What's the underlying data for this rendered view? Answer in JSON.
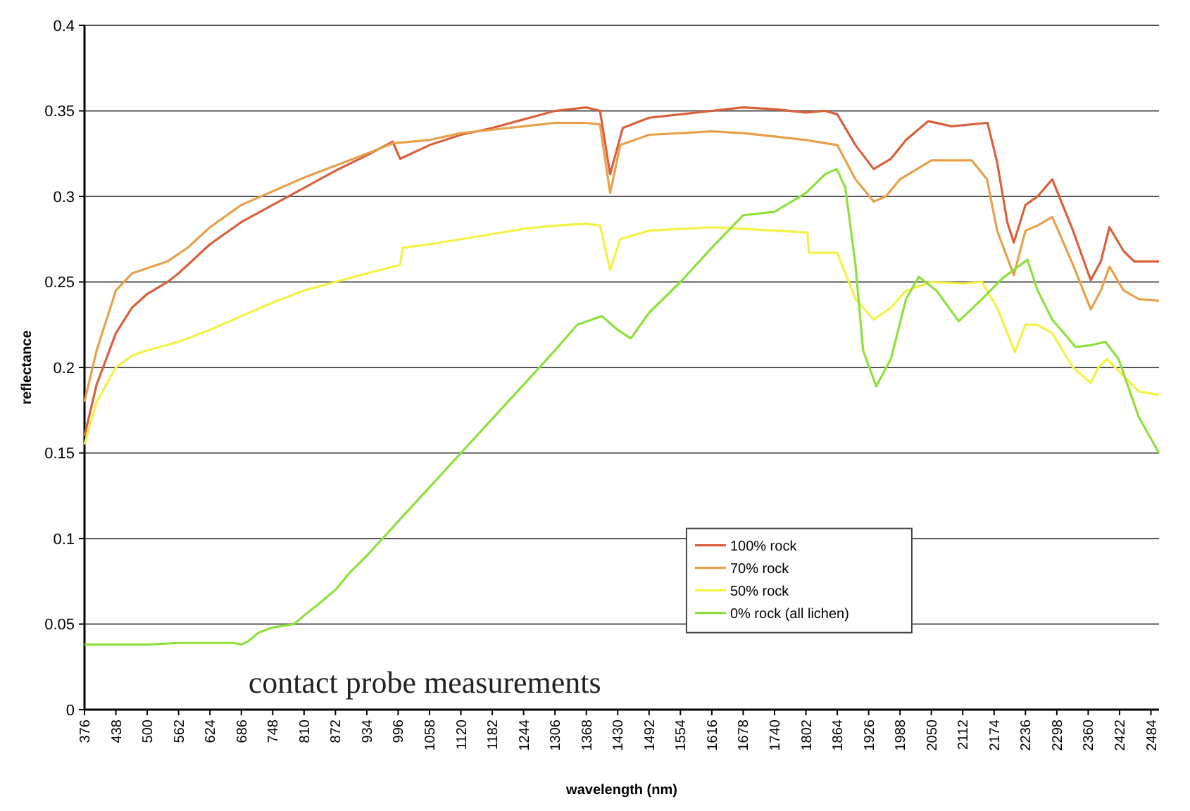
{
  "chart_data": {
    "type": "line",
    "xlabel": "wavelength (nm)",
    "ylabel": "reflectance",
    "annotations": [
      "contact probe measurements"
    ],
    "xlim": [
      376,
      2500
    ],
    "xticks": [
      376,
      438,
      500,
      562,
      624,
      686,
      748,
      810,
      872,
      934,
      996,
      1058,
      1120,
      1182,
      1244,
      1306,
      1368,
      1430,
      1492,
      1554,
      1616,
      1678,
      1740,
      1802,
      1864,
      1926,
      1988,
      2050,
      2112,
      2174,
      2236,
      2298,
      2360,
      2422,
      2484
    ],
    "ylim": [
      0,
      0.4
    ],
    "yticks": [
      0,
      0.05,
      0.1,
      0.15,
      0.2,
      0.25,
      0.3,
      0.35,
      0.4
    ],
    "grid": "y",
    "legend": "bottom right",
    "line_style": "solid",
    "series": [
      {
        "name": "100% rock",
        "color": "#d9603b",
        "x": [
          376,
          400,
          438,
          470,
          500,
          540,
          562,
          624,
          686,
          748,
          810,
          872,
          934,
          985,
          1000,
          1058,
          1120,
          1182,
          1244,
          1306,
          1368,
          1395,
          1415,
          1440,
          1492,
          1554,
          1616,
          1678,
          1740,
          1802,
          1840,
          1864,
          1900,
          1936,
          1970,
          2000,
          2044,
          2090,
          2161,
          2180,
          2200,
          2213,
          2236,
          2260,
          2289,
          2330,
          2365,
          2385,
          2402,
          2430,
          2451,
          2500
        ],
        "values": [
          0.16,
          0.19,
          0.22,
          0.235,
          0.243,
          0.25,
          0.255,
          0.272,
          0.285,
          0.295,
          0.305,
          0.315,
          0.324,
          0.332,
          0.322,
          0.33,
          0.336,
          0.34,
          0.345,
          0.35,
          0.352,
          0.35,
          0.313,
          0.34,
          0.346,
          0.348,
          0.35,
          0.352,
          0.351,
          0.349,
          0.35,
          0.348,
          0.33,
          0.316,
          0.322,
          0.333,
          0.344,
          0.341,
          0.343,
          0.32,
          0.285,
          0.273,
          0.295,
          0.3,
          0.31,
          0.28,
          0.251,
          0.262,
          0.282,
          0.268,
          0.262,
          0.262
        ]
      },
      {
        "name": "70% rock",
        "color": "#e8a04a",
        "x": [
          376,
          400,
          438,
          470,
          500,
          540,
          580,
          624,
          686,
          748,
          810,
          872,
          934,
          985,
          1058,
          1120,
          1182,
          1244,
          1306,
          1368,
          1395,
          1415,
          1435,
          1492,
          1554,
          1616,
          1678,
          1740,
          1802,
          1864,
          1900,
          1936,
          1960,
          1988,
          2050,
          2130,
          2160,
          2180,
          2213,
          2236,
          2260,
          2289,
          2330,
          2365,
          2385,
          2402,
          2430,
          2460,
          2500
        ],
        "values": [
          0.18,
          0.21,
          0.245,
          0.255,
          0.258,
          0.262,
          0.27,
          0.282,
          0.295,
          0.303,
          0.311,
          0.318,
          0.325,
          0.331,
          0.333,
          0.337,
          0.339,
          0.341,
          0.343,
          0.343,
          0.342,
          0.302,
          0.33,
          0.336,
          0.337,
          0.338,
          0.337,
          0.335,
          0.333,
          0.33,
          0.31,
          0.297,
          0.3,
          0.31,
          0.321,
          0.321,
          0.31,
          0.28,
          0.254,
          0.28,
          0.283,
          0.288,
          0.26,
          0.234,
          0.245,
          0.259,
          0.245,
          0.24,
          0.239
        ]
      },
      {
        "name": "50% rock",
        "color": "#f2f244",
        "x": [
          376,
          400,
          438,
          470,
          500,
          562,
          624,
          686,
          748,
          810,
          872,
          934,
          1000,
          1005,
          1058,
          1120,
          1182,
          1244,
          1306,
          1368,
          1395,
          1415,
          1435,
          1492,
          1554,
          1616,
          1678,
          1740,
          1805,
          1808,
          1864,
          1900,
          1936,
          1970,
          2000,
          2050,
          2112,
          2150,
          2180,
          2215,
          2236,
          2260,
          2289,
          2330,
          2365,
          2380,
          2397,
          2430,
          2460,
          2500
        ],
        "values": [
          0.155,
          0.18,
          0.2,
          0.207,
          0.21,
          0.215,
          0.222,
          0.23,
          0.238,
          0.245,
          0.25,
          0.255,
          0.26,
          0.27,
          0.272,
          0.275,
          0.278,
          0.281,
          0.283,
          0.284,
          0.283,
          0.257,
          0.275,
          0.28,
          0.281,
          0.282,
          0.281,
          0.28,
          0.279,
          0.267,
          0.267,
          0.24,
          0.228,
          0.235,
          0.245,
          0.25,
          0.249,
          0.25,
          0.235,
          0.209,
          0.225,
          0.225,
          0.22,
          0.2,
          0.191,
          0.2,
          0.205,
          0.195,
          0.186,
          0.184
        ]
      },
      {
        "name": "0% rock (all lichen)",
        "color": "#8ee03a",
        "x": [
          376,
          438,
          500,
          562,
          624,
          670,
          686,
          700,
          720,
          748,
          790,
          810,
          840,
          872,
          900,
          934,
          965,
          996,
          1058,
          1120,
          1182,
          1244,
          1306,
          1350,
          1399,
          1430,
          1456,
          1492,
          1554,
          1616,
          1678,
          1740,
          1802,
          1840,
          1863,
          1880,
          1900,
          1915,
          1941,
          1970,
          2000,
          2025,
          2060,
          2104,
          2150,
          2190,
          2240,
          2260,
          2289,
          2335,
          2365,
          2394,
          2420,
          2460,
          2500
        ],
        "values": [
          0.038,
          0.038,
          0.038,
          0.039,
          0.039,
          0.039,
          0.038,
          0.04,
          0.045,
          0.048,
          0.05,
          0.055,
          0.062,
          0.07,
          0.08,
          0.09,
          0.1,
          0.11,
          0.13,
          0.15,
          0.17,
          0.19,
          0.21,
          0.225,
          0.23,
          0.222,
          0.217,
          0.232,
          0.25,
          0.27,
          0.289,
          0.291,
          0.302,
          0.313,
          0.316,
          0.305,
          0.26,
          0.21,
          0.189,
          0.205,
          0.24,
          0.253,
          0.245,
          0.227,
          0.24,
          0.252,
          0.263,
          0.245,
          0.228,
          0.212,
          0.213,
          0.215,
          0.205,
          0.171,
          0.15
        ]
      }
    ]
  }
}
